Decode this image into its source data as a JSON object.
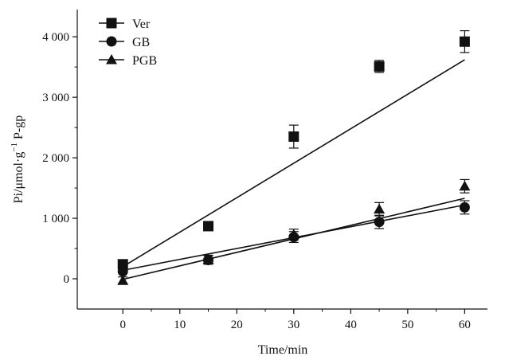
{
  "chart_data": {
    "type": "scatter",
    "title": "",
    "xlabel": "Time/min",
    "ylabel": {
      "prefix": "Pi/μmol·g",
      "superscript": "−1",
      "suffix": " P-gp"
    },
    "xlim": [
      -8,
      64
    ],
    "ylim": [
      -500,
      4450
    ],
    "x_ticks": [
      0,
      10,
      20,
      30,
      40,
      50,
      60
    ],
    "x_tick_labels": [
      "0",
      "10",
      "20",
      "30",
      "40",
      "50",
      "60"
    ],
    "y_ticks": [
      0,
      1000,
      2000,
      3000,
      4000
    ],
    "y_tick_labels": [
      "0",
      "1 000",
      "2 000",
      "3 000",
      "4 000"
    ],
    "grid": false,
    "legend_position": "top-left",
    "series": [
      {
        "name": "Ver",
        "marker": "square",
        "x": [
          0,
          15,
          30,
          45,
          60
        ],
        "y": [
          240,
          870,
          2350,
          3510,
          3920
        ],
        "err": [
          0,
          0,
          190,
          100,
          180
        ],
        "fit": {
          "x": [
            0,
            60
          ],
          "y": [
            200,
            3620
          ]
        }
      },
      {
        "name": "GB",
        "marker": "circle",
        "x": [
          0,
          15,
          30,
          45,
          60
        ],
        "y": [
          120,
          310,
          690,
          940,
          1180
        ],
        "err": [
          0,
          70,
          90,
          110,
          110
        ],
        "fit": {
          "x": [
            0,
            60
          ],
          "y": [
            140,
            1220
          ]
        }
      },
      {
        "name": "PGB",
        "marker": "triangle",
        "x": [
          0,
          15,
          30,
          45,
          60
        ],
        "y": [
          -30,
          320,
          730,
          1150,
          1530
        ],
        "err": [
          60,
          70,
          90,
          110,
          110
        ],
        "fit": {
          "x": [
            0,
            60
          ],
          "y": [
            -10,
            1330
          ]
        }
      }
    ]
  }
}
